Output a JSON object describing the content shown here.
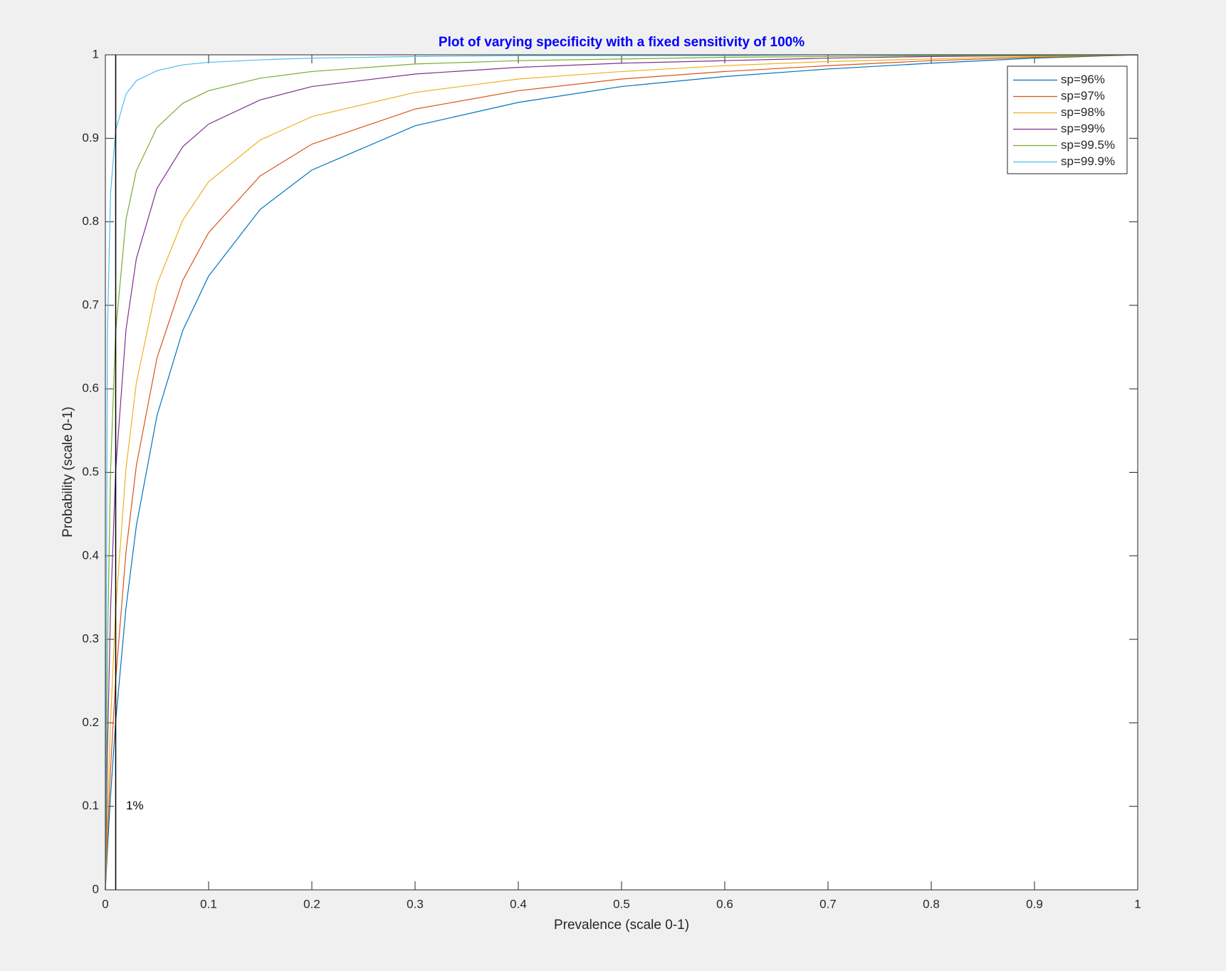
{
  "chart_data": {
    "type": "line",
    "title": "Plot of varying specificity with a fixed sensitivity of 100%",
    "x_label": "Prevalence (scale 0-1)",
    "y_label": "Probability (scale 0-1)",
    "xlim": [
      0,
      1
    ],
    "ylim": [
      0,
      1
    ],
    "xticks": [
      0,
      0.1,
      0.2,
      0.3,
      0.4,
      0.5,
      0.6,
      0.7,
      0.8,
      0.9,
      1
    ],
    "yticks": [
      0,
      0.1,
      0.2,
      0.3,
      0.4,
      0.5,
      0.6,
      0.7,
      0.8,
      0.9,
      1
    ],
    "grid": false,
    "legend": "top-right",
    "vline": 0.01,
    "annotation": {
      "text": "1%",
      "x": 0.02,
      "y": 0.1
    },
    "x": [
      0,
      0.002,
      0.005,
      0.01,
      0.02,
      0.03,
      0.05,
      0.075,
      0.1,
      0.15,
      0.2,
      0.3,
      0.4,
      0.5,
      0.6,
      0.7,
      0.8,
      0.9,
      1
    ],
    "series": [
      {
        "name": "sp=96%",
        "color": "#0072bd",
        "values": [
          0,
          0.048,
          0.112,
          0.202,
          0.338,
          0.436,
          0.568,
          0.67,
          0.735,
          0.815,
          0.862,
          0.915,
          0.943,
          0.962,
          0.974,
          0.983,
          0.99,
          0.996,
          1
        ]
      },
      {
        "name": "sp=97%",
        "color": "#d95319",
        "values": [
          0,
          0.063,
          0.144,
          0.252,
          0.405,
          0.508,
          0.637,
          0.73,
          0.787,
          0.855,
          0.893,
          0.935,
          0.957,
          0.971,
          0.98,
          0.987,
          0.993,
          0.997,
          1
        ]
      },
      {
        "name": "sp=98%",
        "color": "#edb120",
        "values": [
          0,
          0.091,
          0.201,
          0.336,
          0.505,
          0.607,
          0.725,
          0.802,
          0.848,
          0.898,
          0.926,
          0.955,
          0.971,
          0.98,
          0.987,
          0.992,
          0.995,
          0.998,
          1
        ]
      },
      {
        "name": "sp=99%",
        "color": "#7e2f8e",
        "values": [
          0,
          0.167,
          0.334,
          0.503,
          0.671,
          0.756,
          0.84,
          0.89,
          0.917,
          0.946,
          0.962,
          0.977,
          0.985,
          0.99,
          0.993,
          0.996,
          0.998,
          0.999,
          1
        ]
      },
      {
        "name": "sp=99.5%",
        "color": "#77ac30",
        "values": [
          0,
          0.286,
          0.501,
          0.669,
          0.803,
          0.861,
          0.913,
          0.942,
          0.957,
          0.972,
          0.98,
          0.989,
          0.993,
          0.995,
          0.997,
          0.998,
          0.999,
          0.999,
          1
        ]
      },
      {
        "name": "sp=99.9%",
        "color": "#4dbeee",
        "values": [
          0,
          0.667,
          0.834,
          0.91,
          0.953,
          0.969,
          0.981,
          0.988,
          0.991,
          0.994,
          0.996,
          0.998,
          0.999,
          0.999,
          0.999,
          1,
          1,
          1,
          1
        ]
      }
    ]
  }
}
